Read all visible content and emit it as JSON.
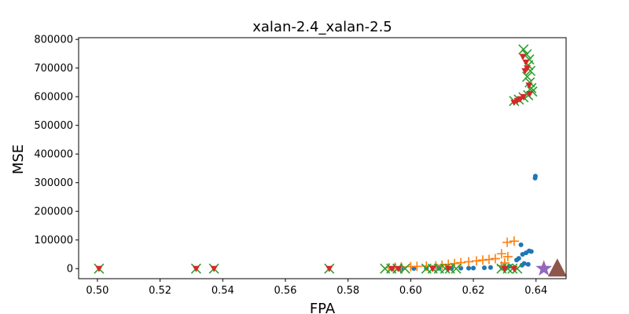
{
  "chart_data": {
    "type": "scatter",
    "title": "xalan-2.4_xalan-2.5",
    "xlabel": "FPA",
    "ylabel": "MSE",
    "xlim": [
      0.494,
      0.6496
    ],
    "ylim": [
      -35000,
      806000
    ],
    "xticks": [
      0.5,
      0.52,
      0.54,
      0.56,
      0.58,
      0.6,
      0.62,
      0.64
    ],
    "xtick_labels": [
      "0.50",
      "0.52",
      "0.54",
      "0.56",
      "0.58",
      "0.60",
      "0.62",
      "0.64"
    ],
    "yticks": [
      0,
      100000,
      200000,
      300000,
      400000,
      500000,
      600000,
      700000,
      800000
    ],
    "ytick_labels": [
      "0",
      "100000",
      "200000",
      "300000",
      "400000",
      "500000",
      "600000",
      "700000",
      "800000"
    ],
    "grid": false,
    "legend": "none",
    "series": [
      {
        "marker": "circle",
        "color": "#1f77b4",
        "points": [
          [
            0.6398,
            323000
          ],
          [
            0.6397,
            316000
          ],
          [
            0.6352,
            83000
          ],
          [
            0.6378,
            62000
          ],
          [
            0.6385,
            60000
          ],
          [
            0.6368,
            55000
          ],
          [
            0.6357,
            50000
          ],
          [
            0.6345,
            36000
          ],
          [
            0.6338,
            30000
          ],
          [
            0.6362,
            18000
          ],
          [
            0.6375,
            15000
          ],
          [
            0.6355,
            12000
          ],
          [
            0.6315,
            8000
          ],
          [
            0.629,
            6000
          ],
          [
            0.6255,
            4000
          ],
          [
            0.6235,
            3000
          ],
          [
            0.62,
            2000
          ],
          [
            0.6185,
            1500
          ],
          [
            0.616,
            1500
          ],
          [
            0.613,
            1000
          ],
          [
            0.609,
            1000
          ],
          [
            0.605,
            800
          ],
          [
            0.601,
            500
          ],
          [
            0.597,
            500
          ],
          [
            0.594,
            500
          ],
          [
            0.63,
            2000
          ]
        ]
      },
      {
        "marker": "plus",
        "color": "#ff7f0e",
        "points": [
          [
            0.633,
            96000
          ],
          [
            0.6308,
            92000
          ],
          [
            0.629,
            52000
          ],
          [
            0.631,
            42000
          ],
          [
            0.627,
            35000
          ],
          [
            0.625,
            32000
          ],
          [
            0.623,
            30000
          ],
          [
            0.621,
            27000
          ],
          [
            0.6185,
            24000
          ],
          [
            0.616,
            21000
          ],
          [
            0.614,
            18000
          ],
          [
            0.612,
            15000
          ],
          [
            0.61,
            12000
          ],
          [
            0.608,
            10000
          ],
          [
            0.605,
            9000
          ],
          [
            0.602,
            8000
          ],
          [
            0.6,
            7000
          ],
          [
            0.597,
            6000
          ],
          [
            0.595,
            5000
          ],
          [
            0.593,
            3000
          ],
          [
            0.629,
            10000
          ],
          [
            0.63,
            20000
          ]
        ]
      },
      {
        "marker": "x",
        "color": "#2ca02c",
        "points": [
          [
            0.5005,
            0
          ],
          [
            0.5315,
            0
          ],
          [
            0.5372,
            0
          ],
          [
            0.574,
            0
          ],
          [
            0.5918,
            0
          ],
          [
            0.5938,
            0
          ],
          [
            0.5958,
            0
          ],
          [
            0.5982,
            0
          ],
          [
            0.605,
            0
          ],
          [
            0.607,
            0
          ],
          [
            0.609,
            0
          ],
          [
            0.611,
            0
          ],
          [
            0.6125,
            0
          ],
          [
            0.6145,
            0
          ],
          [
            0.629,
            0
          ],
          [
            0.631,
            0
          ],
          [
            0.6325,
            0
          ],
          [
            0.634,
            0
          ],
          [
            0.636,
            765000
          ],
          [
            0.637,
            748000
          ],
          [
            0.6378,
            730000
          ],
          [
            0.6375,
            710000
          ],
          [
            0.6382,
            690000
          ],
          [
            0.6372,
            670000
          ],
          [
            0.638,
            650000
          ],
          [
            0.6385,
            630000
          ],
          [
            0.6388,
            618000
          ],
          [
            0.6375,
            605000
          ],
          [
            0.636,
            598000
          ],
          [
            0.6345,
            590000
          ],
          [
            0.633,
            585000
          ]
        ]
      },
      {
        "marker": "tri-down",
        "color": "#d62728",
        "points": [
          [
            0.5005,
            0
          ],
          [
            0.5315,
            0
          ],
          [
            0.5372,
            0
          ],
          [
            0.574,
            0
          ],
          [
            0.594,
            0
          ],
          [
            0.596,
            0
          ],
          [
            0.607,
            0
          ],
          [
            0.612,
            0
          ],
          [
            0.63,
            0
          ],
          [
            0.633,
            0
          ],
          [
            0.6358,
            740000
          ],
          [
            0.6368,
            720000
          ],
          [
            0.6372,
            700000
          ],
          [
            0.6365,
            690000
          ],
          [
            0.6378,
            640000
          ],
          [
            0.638,
            610000
          ],
          [
            0.636,
            600000
          ],
          [
            0.635,
            592000
          ],
          [
            0.634,
            586000
          ],
          [
            0.633,
            580000
          ]
        ]
      },
      {
        "marker": "star",
        "color": "#9467bd",
        "points": [
          [
            0.6425,
            0
          ]
        ]
      },
      {
        "marker": "triangle-up",
        "color": "#8c564b",
        "points": [
          [
            0.6468,
            0
          ]
        ]
      }
    ]
  }
}
